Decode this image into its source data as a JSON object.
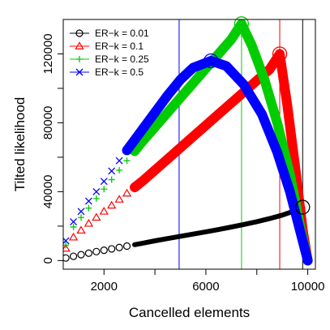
{
  "chart_data": {
    "type": "line",
    "xlabel": "Cancelled elements",
    "ylabel": "Tilted likelihood",
    "xlim": [
      400,
      10300
    ],
    "ylim": [
      -5000,
      140000
    ],
    "x_ticks": [
      2000,
      6000,
      10000
    ],
    "x_minor_ticks": [
      4000,
      8000
    ],
    "y_ticks": [
      0,
      40000,
      80000,
      120000
    ],
    "y_minor_ticks": [
      20000,
      60000,
      100000
    ],
    "legend_position": "top-left",
    "series": [
      {
        "name": "ER−k = 0.01",
        "color": "#000000",
        "marker": "circle",
        "points": [
          [
            500,
            1500
          ],
          [
            800,
            2500
          ],
          [
            1100,
            3400
          ],
          [
            1400,
            4300
          ],
          [
            1700,
            5200
          ],
          [
            2000,
            6000
          ],
          [
            2300,
            6800
          ],
          [
            2600,
            7600
          ],
          [
            2900,
            8400
          ],
          [
            3200,
            9200
          ],
          [
            3500,
            10000
          ],
          [
            4000,
            11500
          ],
          [
            4500,
            12800
          ],
          [
            5000,
            14100
          ],
          [
            5500,
            15400
          ],
          [
            6000,
            16700
          ],
          [
            6500,
            18000
          ],
          [
            7000,
            19500
          ],
          [
            7500,
            21000
          ],
          [
            8000,
            22600
          ],
          [
            8500,
            24400
          ],
          [
            9000,
            26400
          ],
          [
            9500,
            29000
          ],
          [
            9800,
            31000
          ],
          [
            9870,
            18000
          ],
          [
            9920,
            8000
          ],
          [
            9960,
            2000
          ],
          [
            10000,
            0
          ]
        ],
        "highlight": [
          9800,
          31000
        ],
        "vline": 9800
      },
      {
        "name": "ER−k = 0.1",
        "color": "#ff0000",
        "marker": "triangle",
        "points": [
          [
            500,
            7000
          ],
          [
            800,
            13500
          ],
          [
            1100,
            17500
          ],
          [
            1400,
            21500
          ],
          [
            1700,
            25000
          ],
          [
            2000,
            28500
          ],
          [
            2300,
            32000
          ],
          [
            2600,
            35500
          ],
          [
            2900,
            39000
          ],
          [
            3200,
            42500
          ],
          [
            3500,
            46000
          ],
          [
            4000,
            52500
          ],
          [
            4500,
            59000
          ],
          [
            5000,
            65500
          ],
          [
            5500,
            72000
          ],
          [
            6000,
            78500
          ],
          [
            6500,
            85000
          ],
          [
            7000,
            91500
          ],
          [
            7500,
            98000
          ],
          [
            8000,
            104500
          ],
          [
            8500,
            111000
          ],
          [
            8900,
            120000
          ],
          [
            9200,
            90000
          ],
          [
            9500,
            55000
          ],
          [
            9800,
            18000
          ],
          [
            10000,
            0
          ]
        ],
        "highlight": [
          8900,
          120000
        ],
        "vline": 8900
      },
      {
        "name": "ER−k = 0.25",
        "color": "#00cc00",
        "marker": "plus",
        "points": [
          [
            500,
            9000
          ],
          [
            800,
            19500
          ],
          [
            1100,
            25000
          ],
          [
            1400,
            30500
          ],
          [
            1700,
            36000
          ],
          [
            2000,
            41500
          ],
          [
            2300,
            47000
          ],
          [
            2600,
            52500
          ],
          [
            2900,
            58000
          ],
          [
            3200,
            63500
          ],
          [
            3500,
            69000
          ],
          [
            4000,
            77500
          ],
          [
            4500,
            86000
          ],
          [
            5000,
            94500
          ],
          [
            5500,
            103000
          ],
          [
            6000,
            111500
          ],
          [
            6500,
            120000
          ],
          [
            7000,
            128500
          ],
          [
            7400,
            137500
          ],
          [
            7800,
            125000
          ],
          [
            8300,
            105000
          ],
          [
            8800,
            80000
          ],
          [
            9300,
            50000
          ],
          [
            9700,
            20000
          ],
          [
            10000,
            0
          ]
        ],
        "highlight": [
          7400,
          137500
        ],
        "vline": 7400
      },
      {
        "name": "ER−k = 0.5",
        "color": "#0000ff",
        "marker": "cross",
        "points": [
          [
            500,
            11500
          ],
          [
            800,
            22500
          ],
          [
            1100,
            28500
          ],
          [
            1400,
            34500
          ],
          [
            1700,
            40000
          ],
          [
            2000,
            46000
          ],
          [
            2300,
            52000
          ],
          [
            2600,
            58000
          ],
          [
            2900,
            64000
          ],
          [
            3200,
            70000
          ],
          [
            3500,
            76000
          ],
          [
            4000,
            86000
          ],
          [
            4500,
            96000
          ],
          [
            5000,
            105000
          ],
          [
            5500,
            112000
          ],
          [
            6200,
            116000
          ],
          [
            6800,
            113000
          ],
          [
            7500,
            102000
          ],
          [
            8200,
            85000
          ],
          [
            8800,
            63000
          ],
          [
            9300,
            40000
          ],
          [
            9700,
            17000
          ],
          [
            10000,
            0
          ]
        ],
        "highlight": [
          6200,
          116000
        ],
        "vline": 4950
      }
    ]
  }
}
